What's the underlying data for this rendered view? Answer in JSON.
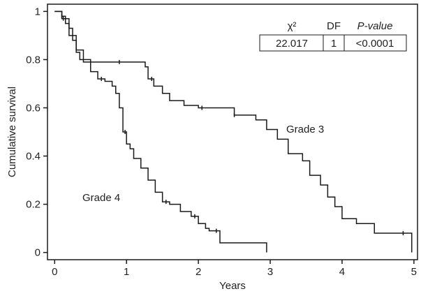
{
  "chart_data": {
    "type": "line",
    "step": true,
    "xlabel": "Years",
    "ylabel": "Cumulative survival",
    "xlim": [
      -0.1,
      5.05
    ],
    "ylim": [
      -0.03,
      1.03
    ],
    "x_ticks": [
      0,
      1,
      2,
      3,
      4,
      5
    ],
    "y_ticks": [
      0,
      0.2,
      0.4,
      0.6,
      0.8,
      1
    ],
    "x_tick_labels": [
      "0",
      "1",
      "2",
      "3",
      "4",
      "5"
    ],
    "y_tick_labels": [
      "0",
      "0.2",
      "0.4",
      "0.6",
      "0.8",
      "1"
    ],
    "grid": false,
    "series": [
      {
        "name": "Grade 3",
        "points": [
          [
            0,
            1.0
          ],
          [
            0.1,
            0.98
          ],
          [
            0.15,
            0.95
          ],
          [
            0.2,
            0.93
          ],
          [
            0.25,
            0.88
          ],
          [
            0.3,
            0.83
          ],
          [
            0.35,
            0.8
          ],
          [
            0.45,
            0.8
          ],
          [
            0.5,
            0.79
          ],
          [
            1.0,
            0.79
          ],
          [
            1.26,
            0.77
          ],
          [
            1.3,
            0.72
          ],
          [
            1.38,
            0.69
          ],
          [
            1.5,
            0.66
          ],
          [
            1.6,
            0.63
          ],
          [
            1.8,
            0.61
          ],
          [
            2.0,
            0.6
          ],
          [
            2.1,
            0.6
          ],
          [
            2.5,
            0.57
          ],
          [
            2.8,
            0.55
          ],
          [
            2.95,
            0.51
          ],
          [
            3.1,
            0.47
          ],
          [
            3.25,
            0.41
          ],
          [
            3.45,
            0.38
          ],
          [
            3.55,
            0.32
          ],
          [
            3.7,
            0.28
          ],
          [
            3.8,
            0.23
          ],
          [
            3.9,
            0.19
          ],
          [
            4.0,
            0.14
          ],
          [
            4.2,
            0.12
          ],
          [
            4.45,
            0.08
          ],
          [
            4.97,
            0.08
          ],
          [
            4.97,
            0.0
          ]
        ],
        "censor_x": [
          0.1,
          0.5,
          0.9,
          1.35,
          2.05,
          2.5,
          4.85
        ]
      },
      {
        "name": "Grade 4",
        "points": [
          [
            0,
            1.0
          ],
          [
            0.1,
            0.97
          ],
          [
            0.2,
            0.9
          ],
          [
            0.3,
            0.84
          ],
          [
            0.4,
            0.79
          ],
          [
            0.5,
            0.75
          ],
          [
            0.6,
            0.72
          ],
          [
            0.7,
            0.71
          ],
          [
            0.8,
            0.69
          ],
          [
            0.85,
            0.66
          ],
          [
            0.9,
            0.6
          ],
          [
            0.95,
            0.5
          ],
          [
            1.0,
            0.45
          ],
          [
            1.05,
            0.43
          ],
          [
            1.1,
            0.39
          ],
          [
            1.2,
            0.35
          ],
          [
            1.3,
            0.3
          ],
          [
            1.4,
            0.25
          ],
          [
            1.5,
            0.21
          ],
          [
            1.6,
            0.2
          ],
          [
            1.75,
            0.17
          ],
          [
            1.9,
            0.15
          ],
          [
            2.0,
            0.12
          ],
          [
            2.1,
            0.1
          ],
          [
            2.15,
            0.09
          ],
          [
            2.3,
            0.04
          ],
          [
            2.95,
            0.04
          ],
          [
            2.95,
            0.0
          ]
        ],
        "censor_x": [
          0.12,
          0.65,
          0.98,
          1.55,
          1.95,
          2.25
        ]
      }
    ],
    "annotations": [
      "Grade 3",
      "Grade 4"
    ],
    "stats_table": {
      "headers": [
        "χ²",
        "DF",
        "P-value"
      ],
      "row": [
        "22.017",
        "1",
        "<0.0001"
      ]
    }
  }
}
